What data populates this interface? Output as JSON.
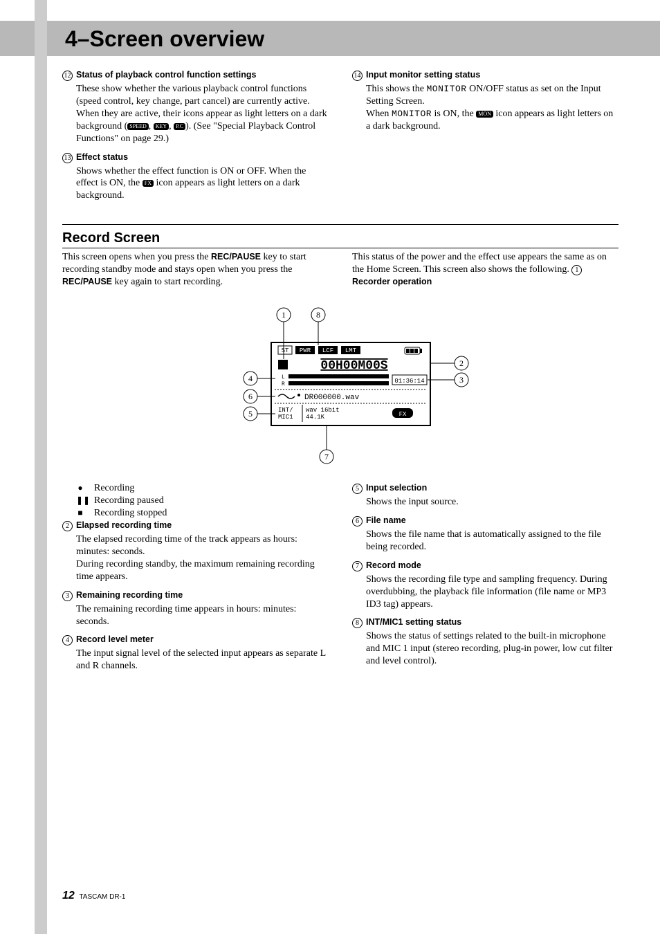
{
  "chapter_title": "4–Screen overview",
  "top_left_items": [
    {
      "num": "12",
      "title": "Status of playback control function settings",
      "body_html": "These show whether the various playback control functions (speed control, key change, part cancel) are currently active. When they are active, their icons appear as light letters on a dark background (<span class='iconbox'>SPEED</span>, <span class='iconbox'>KEY</span>, <span class='iconbox'>P.C</span>). (See \"Special Playback Control Functions\" on page 29.)"
    },
    {
      "num": "13",
      "title": "Effect status",
      "body_html": "Shows whether the effect function is ON or OFF. When the effect is ON, the <span class='iconbox'>FX</span> icon appears as light letters on a dark background."
    }
  ],
  "top_right_items": [
    {
      "num": "14",
      "title": "Input monitor setting status",
      "body_html": "This shows the <span class='mono'>MONITOR</span> ON/OFF status as set on the Input Setting Screen.<br>When <span class='mono'>MONITOR</span> is ON, the <span class='iconbox'>MON</span> icon appears as light letters on a dark background."
    }
  ],
  "section_title": "Record Screen",
  "intro_left": "This screen opens when you press the <span class='sans-inline'>REC/PAUSE</span> key to start recording standby mode and stays open when you press the <span class='sans-inline'>REC/PAUSE</span> key again to start recording.",
  "intro_right": "This status of the power and the effect use appears the same as on the Home Screen. This screen also shows the following. <span class='circ-num'>1</span> &nbsp;&nbsp;&nbsp;&nbsp;&nbsp; <span class='sans-inline'>Recorder operation</span>",
  "diagram": {
    "time_display": "00H00M00S",
    "remaining": "01:36:14",
    "filename": "DR000000.wav",
    "input_line": "INT/ MIC1",
    "mode_line": "wav 16bit 44.1K",
    "top_tabs": [
      "ST",
      "PWR",
      "LCF",
      "LMT"
    ],
    "callouts": {
      "1": "1",
      "2": "2",
      "3": "3",
      "4": "4",
      "5": "5",
      "6": "6",
      "7": "7",
      "8": "8"
    }
  },
  "rec_bullets": [
    {
      "glyph": "●",
      "label": "Recording"
    },
    {
      "glyph": "❚❚",
      "label": "Recording paused"
    },
    {
      "glyph": "■",
      "label": "Recording stopped"
    }
  ],
  "left_items": [
    {
      "num": "2",
      "title": "Elapsed recording time",
      "body": "The elapsed recording time of the track appears as hours: minutes: seconds.\nDuring recording standby, the maximum remaining recording time appears."
    },
    {
      "num": "3",
      "title": "Remaining recording time",
      "body": "The remaining recording time appears in hours: minutes: seconds."
    },
    {
      "num": "4",
      "title": "Record level meter",
      "body": "The input signal level of the selected input appears as separate L and R channels."
    }
  ],
  "right_items": [
    {
      "num": "5",
      "title": "Input selection",
      "body": "Shows the input source."
    },
    {
      "num": "6",
      "title": "File name",
      "body": "Shows the file name that is automatically assigned to the file being recorded."
    },
    {
      "num": "7",
      "title": "Record mode",
      "body": "Shows the recording file type and sampling frequency. During overdubbing, the playback file information (file name or MP3 ID3 tag) appears."
    },
    {
      "num": "8",
      "title": "INT/MIC1 setting status",
      "body": "Shows the status of settings related to the built-in microphone and MIC 1 input (stereo recording, plug-in power, low cut filter and level control)."
    }
  ],
  "footer": {
    "page": "12",
    "model": "TASCAM DR-1"
  }
}
